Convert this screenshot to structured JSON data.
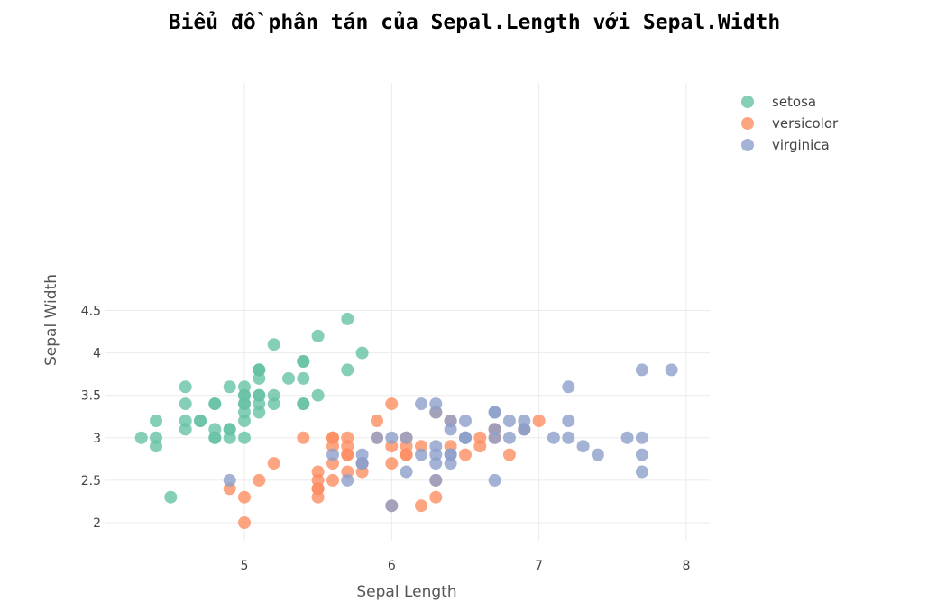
{
  "chart_data": {
    "type": "scatter",
    "title": "Biểu đồ phân tán của Sepal.Length với Sepal.Width",
    "xlabel": "Sepal Length",
    "ylabel": "Sepal Width",
    "xlim": [
      4.1,
      8.15
    ],
    "ylim": [
      1.8,
      4.57
    ],
    "x_ticks": [
      5,
      6,
      7,
      8
    ],
    "y_ticks": [
      2,
      2.5,
      3,
      3.5,
      4,
      4.5
    ],
    "x_tick_labels": [
      "5",
      "6",
      "7",
      "8"
    ],
    "y_tick_labels": [
      "2",
      "2.5",
      "3",
      "3.5",
      "4",
      "4.5"
    ],
    "grid": true,
    "legend_position": "top-right",
    "series": [
      {
        "name": "setosa",
        "color": "#66c2a5",
        "x": [
          5.1,
          4.9,
          4.7,
          4.6,
          5.0,
          5.4,
          4.6,
          5.0,
          4.4,
          4.9,
          5.4,
          4.8,
          4.8,
          4.3,
          5.8,
          5.7,
          5.4,
          5.1,
          5.7,
          5.1,
          5.4,
          5.1,
          4.6,
          5.1,
          4.8,
          5.0,
          5.0,
          5.2,
          5.2,
          4.7,
          4.8,
          5.4,
          5.2,
          5.5,
          4.9,
          5.0,
          5.5,
          4.9,
          4.4,
          5.1,
          5.0,
          4.5,
          4.4,
          5.0,
          5.1,
          4.8,
          5.1,
          4.6,
          5.3,
          5.0
        ],
        "y": [
          3.5,
          3.0,
          3.2,
          3.1,
          3.6,
          3.9,
          3.4,
          3.4,
          2.9,
          3.1,
          3.7,
          3.4,
          3.0,
          3.0,
          4.0,
          4.4,
          3.9,
          3.5,
          3.8,
          3.8,
          3.4,
          3.7,
          3.6,
          3.3,
          3.4,
          3.0,
          3.4,
          3.5,
          3.4,
          3.2,
          3.1,
          3.4,
          4.1,
          4.2,
          3.1,
          3.2,
          3.5,
          3.6,
          3.0,
          3.4,
          3.5,
          2.3,
          3.2,
          3.5,
          3.8,
          3.0,
          3.8,
          3.2,
          3.7,
          3.3
        ]
      },
      {
        "name": "versicolor",
        "color": "#fc8d62",
        "x": [
          7.0,
          6.4,
          6.9,
          5.5,
          6.5,
          5.7,
          6.3,
          4.9,
          6.6,
          5.2,
          5.0,
          5.9,
          6.0,
          6.1,
          5.6,
          6.7,
          5.6,
          5.8,
          6.2,
          5.6,
          5.9,
          6.1,
          6.3,
          6.1,
          6.4,
          6.6,
          6.8,
          6.7,
          6.0,
          5.7,
          5.5,
          5.5,
          5.8,
          6.0,
          5.4,
          6.0,
          6.7,
          6.3,
          5.6,
          5.5,
          5.5,
          6.1,
          5.8,
          5.0,
          5.6,
          5.7,
          5.7,
          6.2,
          5.1,
          5.7
        ],
        "y": [
          3.2,
          3.2,
          3.1,
          2.3,
          2.8,
          2.8,
          3.3,
          2.4,
          2.9,
          2.7,
          2.0,
          3.0,
          2.2,
          2.9,
          2.9,
          3.1,
          3.0,
          2.7,
          2.2,
          2.5,
          3.2,
          2.8,
          2.5,
          2.8,
          2.9,
          3.0,
          2.8,
          3.0,
          2.9,
          2.6,
          2.4,
          2.4,
          2.7,
          2.7,
          3.0,
          3.4,
          3.1,
          2.3,
          3.0,
          2.5,
          2.6,
          3.0,
          2.6,
          2.3,
          2.7,
          3.0,
          2.9,
          2.9,
          2.5,
          2.8
        ]
      },
      {
        "name": "virginica",
        "color": "#8da0cb",
        "x": [
          6.3,
          5.8,
          7.1,
          6.3,
          6.5,
          7.6,
          4.9,
          7.3,
          6.7,
          7.2,
          6.5,
          6.4,
          6.8,
          5.7,
          5.8,
          6.4,
          6.5,
          7.7,
          7.7,
          6.0,
          6.9,
          5.6,
          7.7,
          6.3,
          6.7,
          7.2,
          6.2,
          6.1,
          6.4,
          7.2,
          7.4,
          7.9,
          6.4,
          6.3,
          6.1,
          7.7,
          6.3,
          6.4,
          6.0,
          6.9,
          6.7,
          6.9,
          5.8,
          6.8,
          6.7,
          6.7,
          6.3,
          6.5,
          6.2,
          5.9
        ],
        "y": [
          3.3,
          2.7,
          3.0,
          2.9,
          3.0,
          3.0,
          2.5,
          2.9,
          2.5,
          3.6,
          3.2,
          2.7,
          3.0,
          2.5,
          2.8,
          3.2,
          3.0,
          3.8,
          2.6,
          2.2,
          3.2,
          2.8,
          2.8,
          2.7,
          3.3,
          3.2,
          2.8,
          3.0,
          2.8,
          3.0,
          2.8,
          3.8,
          2.8,
          2.8,
          2.6,
          3.0,
          3.4,
          3.1,
          3.0,
          3.1,
          3.1,
          3.1,
          2.7,
          3.2,
          3.3,
          3.0,
          2.5,
          3.0,
          3.4,
          3.0
        ]
      }
    ]
  }
}
